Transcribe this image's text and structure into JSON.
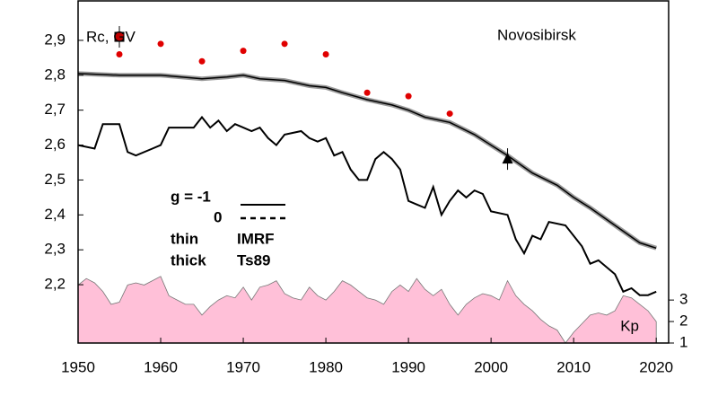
{
  "chart_data": {
    "type": "line",
    "annotations": {
      "axis_label": "Rc, GV",
      "station": "Novosibirsk",
      "legend_g": "g  = -1",
      "legend_zero": "0",
      "legend_thin": "thin",
      "legend_imrf": "IMRF",
      "legend_thick": "Ts89",
      "legend_thick_word": "thick"
    },
    "xlim": [
      1950,
      2021.5
    ],
    "xticks": [
      1950,
      1960,
      1970,
      1980,
      1990,
      2000,
      2010,
      2020
    ],
    "ylim": [
      2.033,
      3.013
    ],
    "yticks": [
      {
        "value": 2.2,
        "label": "2,2"
      },
      {
        "value": 2.3,
        "label": "2,3"
      },
      {
        "value": 2.4,
        "label": "2,4"
      },
      {
        "value": 2.5,
        "label": "2,5"
      },
      {
        "value": 2.6,
        "label": "2,6"
      },
      {
        "value": 2.7,
        "label": "2,7"
      },
      {
        "value": 2.8,
        "label": "2,8"
      },
      {
        "value": 2.9,
        "label": "2,9"
      }
    ],
    "y2lim": [
      1,
      16.92
    ],
    "y2ticks": [
      1,
      2,
      3
    ],
    "series": [
      {
        "name": "Kp",
        "axis": "y2",
        "mark": "area",
        "color": "#ffc0d8",
        "x": [
          1950,
          1951,
          1952,
          1953,
          1954,
          1955,
          1956,
          1957,
          1958,
          1959,
          1960,
          1961,
          1962,
          1963,
          1964,
          1965,
          1966,
          1967,
          1968,
          1969,
          1970,
          1971,
          1972,
          1973,
          1974,
          1975,
          1976,
          1977,
          1978,
          1979,
          1980,
          1981,
          1982,
          1983,
          1984,
          1985,
          1986,
          1987,
          1988,
          1989,
          1990,
          1991,
          1992,
          1993,
          1994,
          1995,
          1996,
          1997,
          1998,
          1999,
          2000,
          2001,
          2002,
          2003,
          2004,
          2005,
          2006,
          2007,
          2008,
          2009,
          2010,
          2011,
          2012,
          2013,
          2014,
          2015,
          2016,
          2017,
          2018,
          2019,
          2020
        ],
        "values": [
          3.7,
          4.0,
          3.8,
          3.4,
          2.8,
          2.9,
          3.7,
          3.8,
          3.7,
          3.9,
          4.1,
          3.2,
          3.0,
          2.8,
          2.8,
          2.3,
          2.7,
          3.0,
          3.2,
          3.1,
          3.6,
          3.0,
          3.6,
          3.7,
          3.9,
          3.3,
          3.1,
          3.0,
          3.6,
          3.2,
          3.0,
          3.4,
          3.9,
          3.7,
          3.4,
          3.1,
          3.0,
          2.8,
          3.4,
          3.7,
          3.4,
          4.0,
          3.5,
          3.2,
          3.5,
          2.8,
          2.3,
          2.8,
          3.1,
          3.3,
          3.2,
          3.0,
          3.9,
          3.2,
          2.8,
          2.5,
          2.1,
          1.8,
          1.6,
          1.0,
          1.5,
          1.9,
          2.3,
          2.4,
          2.3,
          2.5,
          3.2,
          3.1,
          2.8,
          2.5,
          2.0
        ]
      },
      {
        "mark": "line",
        "width": 1.5,
        "halo": "#999999",
        "color": "#000000",
        "x": [
          1950,
          1955,
          1960,
          1965,
          1968,
          1970,
          1972,
          1975,
          1978,
          1980,
          1982,
          1985,
          1988,
          1990,
          1992,
          1995,
          1998,
          2000,
          2002,
          2005,
          2008,
          2010,
          2012,
          2015,
          2018,
          2020
        ],
        "values": [
          2.805,
          2.8,
          2.8,
          2.79,
          2.795,
          2.8,
          2.79,
          2.785,
          2.77,
          2.765,
          2.75,
          2.73,
          2.715,
          2.7,
          2.68,
          2.665,
          2.63,
          2.6,
          2.57,
          2.52,
          2.485,
          2.45,
          2.42,
          2.37,
          2.32,
          2.305
        ]
      },
      {
        "mark": "line",
        "width": 2,
        "color": "#000000",
        "x": [
          1950,
          1952,
          1953,
          1955,
          1956,
          1957,
          1959,
          1960,
          1961,
          1964,
          1965,
          1966,
          1967,
          1968,
          1969,
          1970,
          1971,
          1972,
          1973,
          1974,
          1975,
          1977,
          1978,
          1979,
          1980,
          1981,
          1982,
          1983,
          1984,
          1985,
          1986,
          1987,
          1988,
          1989,
          1990,
          1991,
          1992,
          1993,
          1994,
          1995,
          1996,
          1997,
          1998,
          1999,
          2000,
          2002,
          2003,
          2004,
          2005,
          2006,
          2007,
          2009,
          2010,
          2011,
          2012,
          2013,
          2014,
          2015,
          2016,
          2017,
          2018,
          2019,
          2020
        ],
        "values": [
          2.6,
          2.59,
          2.66,
          2.66,
          2.58,
          2.57,
          2.59,
          2.6,
          2.65,
          2.65,
          2.68,
          2.65,
          2.67,
          2.64,
          2.66,
          2.65,
          2.64,
          2.65,
          2.62,
          2.6,
          2.63,
          2.64,
          2.62,
          2.61,
          2.62,
          2.57,
          2.58,
          2.53,
          2.5,
          2.5,
          2.56,
          2.58,
          2.56,
          2.53,
          2.44,
          2.43,
          2.42,
          2.48,
          2.4,
          2.44,
          2.47,
          2.45,
          2.47,
          2.46,
          2.41,
          2.4,
          2.33,
          2.29,
          2.34,
          2.33,
          2.38,
          2.37,
          2.34,
          2.31,
          2.26,
          2.27,
          2.25,
          2.23,
          2.18,
          2.19,
          2.17,
          2.17,
          2.18
        ]
      },
      {
        "mark": "circle",
        "color": "#e00000",
        "x": [
          1955,
          1960,
          1965,
          1970,
          1975,
          1980,
          1985,
          1990,
          1995
        ],
        "values": [
          2.86,
          2.89,
          2.84,
          2.87,
          2.89,
          2.86,
          2.75,
          2.74,
          2.69
        ]
      },
      {
        "mark": "square",
        "color": "#c00000",
        "x": [
          1955
        ],
        "values": [
          2.91
        ]
      },
      {
        "mark": "triangle",
        "color": "#000000",
        "x": [
          2002
        ],
        "values": [
          2.56
        ]
      }
    ]
  }
}
